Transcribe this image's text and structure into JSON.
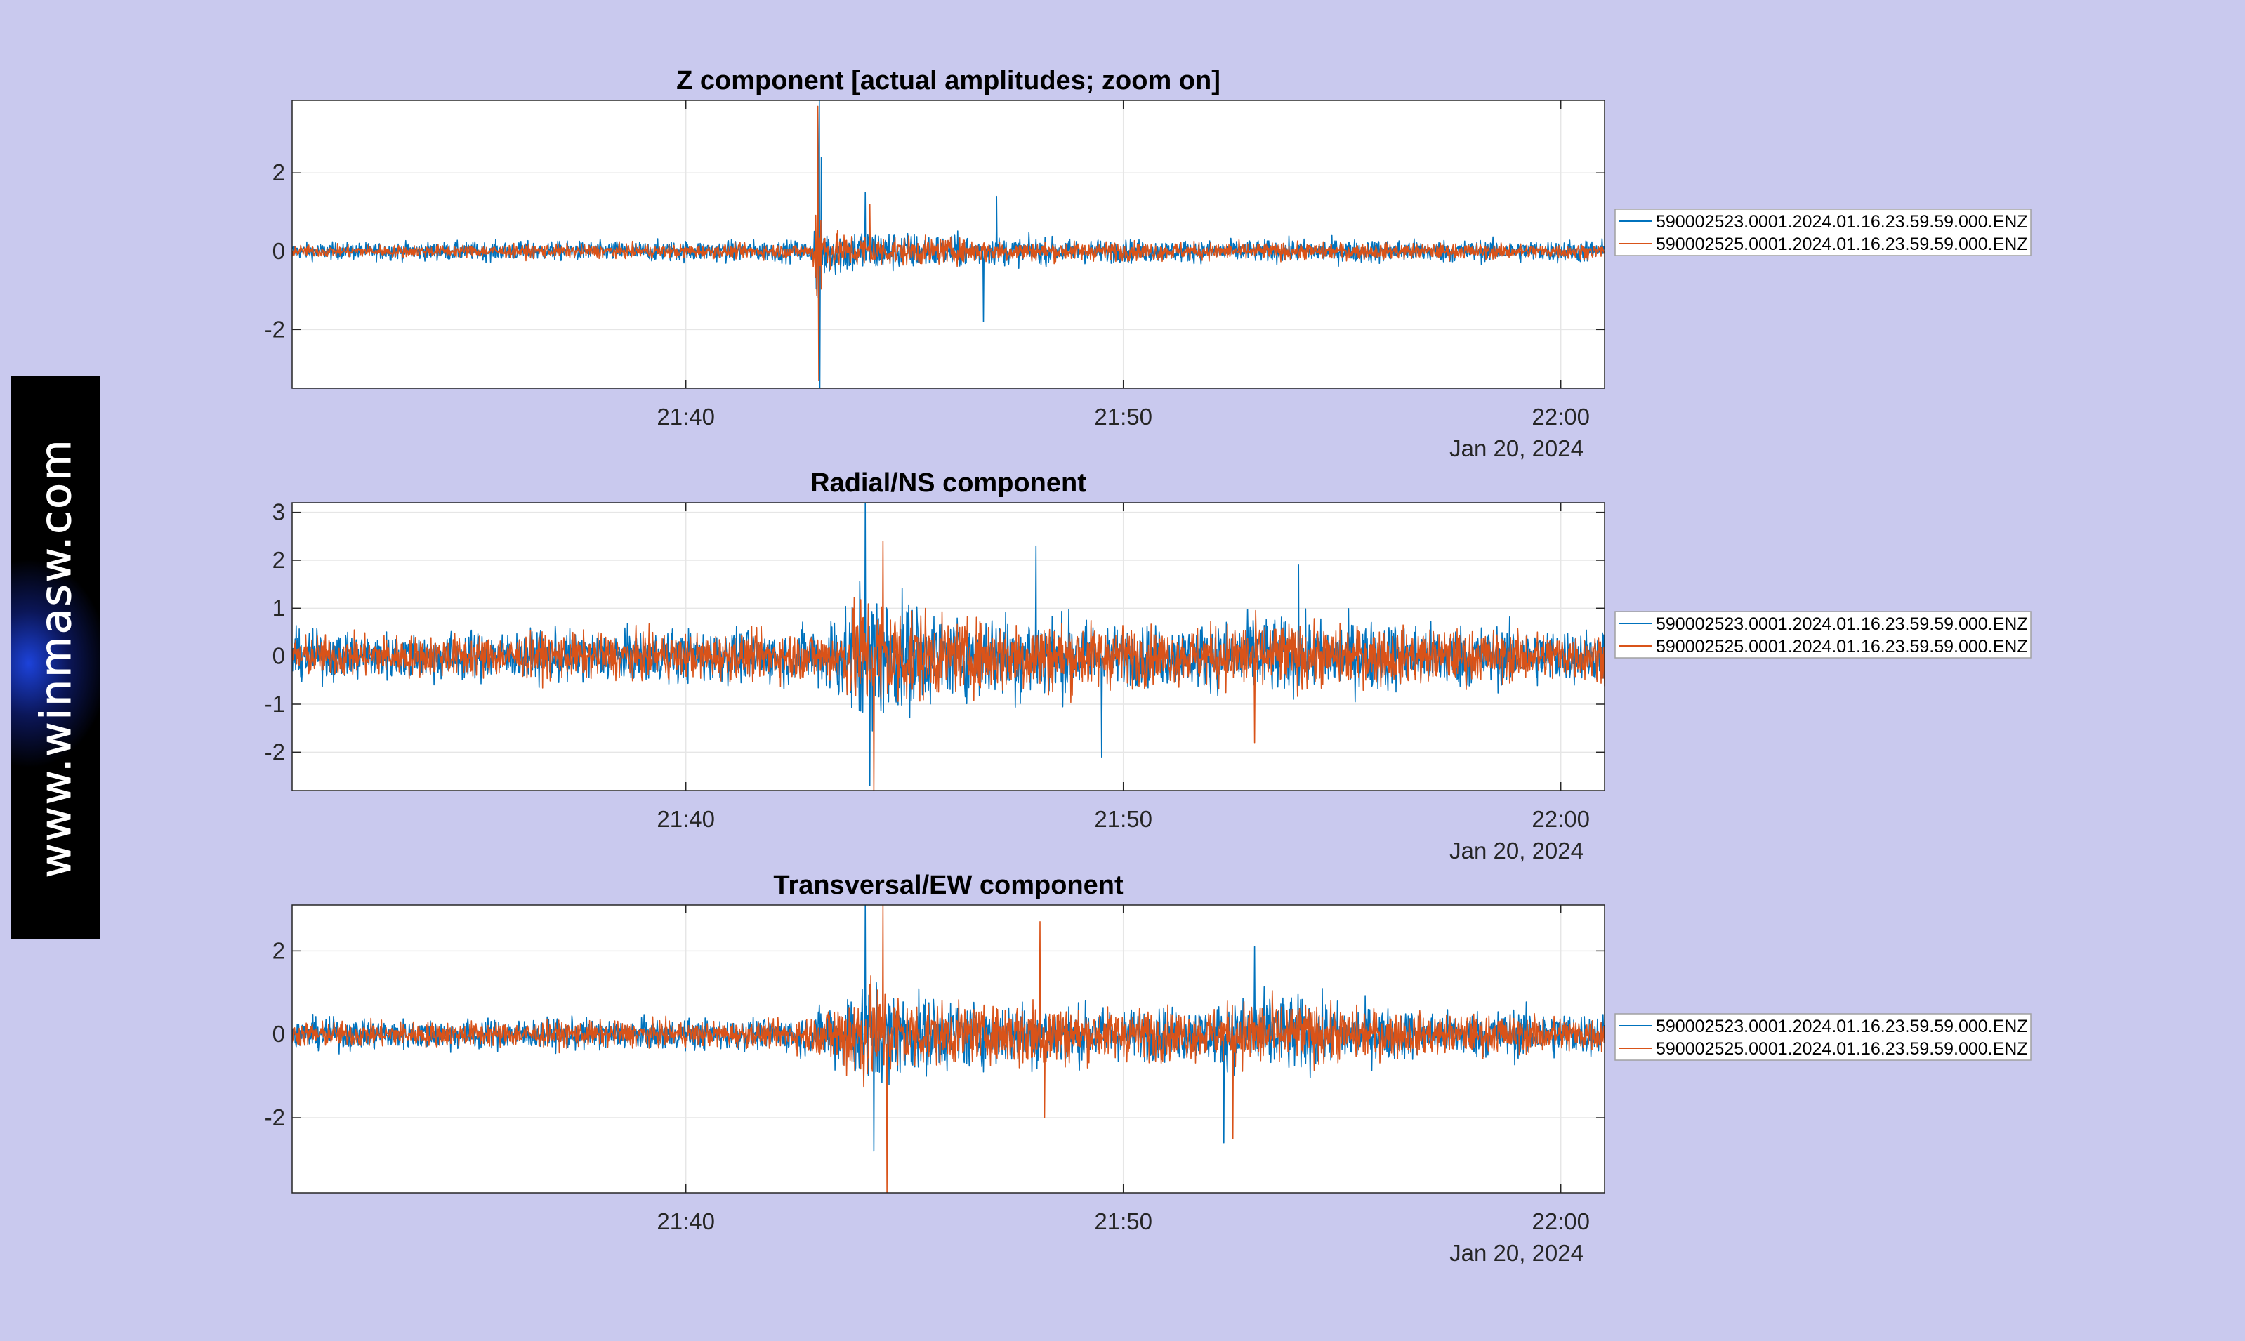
{
  "watermark": {
    "text": "www.winmasw.com"
  },
  "colors": {
    "background": "#c9c9ee",
    "series_1": "#0072bd",
    "series_2": "#d95319",
    "grid": "#e6e6e6",
    "axis": "#262626"
  },
  "chart_data": [
    {
      "type": "line",
      "title": "Z component [actual amplitudes; zoom on]",
      "x_axis": {
        "type": "time",
        "range": [
          "21:31:00",
          "22:01:00"
        ],
        "ticks": [
          "21:40",
          "21:50",
          "22:00"
        ],
        "secondary_label": "Jan 20, 2024"
      },
      "y_axis": {
        "range": [
          -3.5,
          3.85
        ],
        "ticks": [
          2,
          0,
          -2
        ]
      },
      "grid": true,
      "legend": {
        "placement": "right-outside",
        "entries": [
          "590002523.0001.2024.01.16.23.59.59.000.ENZ",
          "590002525.0001.2024.01.16.23.59.59.000.ENZ"
        ]
      },
      "series": [
        {
          "name": "590002523.0001.2024.01.16.23.59.59.000.ENZ",
          "color": "#0072bd",
          "envelope": [
            [
              0,
              0.35
            ],
            [
              5,
              0.4
            ],
            [
              10,
              0.45
            ],
            [
              11.9,
              0.45
            ],
            [
              12.05,
              3.85
            ],
            [
              12.2,
              1.0
            ],
            [
              13,
              1.0
            ],
            [
              14,
              0.8
            ],
            [
              15,
              0.7
            ],
            [
              16,
              0.6
            ],
            [
              18,
              0.5
            ],
            [
              21,
              0.45
            ],
            [
              25,
              0.5
            ],
            [
              28,
              0.45
            ],
            [
              30,
              0.5
            ]
          ],
          "spikes": [
            [
              12.05,
              3.85
            ],
            [
              12.06,
              -3.5
            ],
            [
              12.1,
              2.4
            ],
            [
              13.1,
              1.5
            ],
            [
              15.8,
              -1.8
            ],
            [
              16.1,
              1.4
            ]
          ]
        },
        {
          "name": "590002525.0001.2024.01.16.23.59.59.000.ENZ",
          "color": "#d95319",
          "envelope": [
            [
              0,
              0.25
            ],
            [
              10,
              0.3
            ],
            [
              11.9,
              0.3
            ],
            [
              12.0,
              3.6
            ],
            [
              12.2,
              0.8
            ],
            [
              14,
              0.6
            ],
            [
              17,
              0.4
            ],
            [
              30,
              0.3
            ]
          ],
          "spikes": [
            [
              12.02,
              3.7
            ],
            [
              12.04,
              -3.3
            ],
            [
              13.2,
              1.2
            ]
          ]
        }
      ]
    },
    {
      "type": "line",
      "title": "Radial/NS component",
      "x_axis": {
        "type": "time",
        "range": [
          "21:31:00",
          "22:01:00"
        ],
        "ticks": [
          "21:40",
          "21:50",
          "22:00"
        ],
        "secondary_label": "Jan 20, 2024"
      },
      "y_axis": {
        "range": [
          -2.8,
          3.2
        ],
        "ticks": [
          3,
          2,
          1,
          0,
          -1,
          -2
        ]
      },
      "grid": true,
      "legend": {
        "placement": "right-outside",
        "entries": [
          "590002523.0001.2024.01.16.23.59.59.000.ENZ",
          "590002525.0001.2024.01.16.23.59.59.000.ENZ"
        ]
      },
      "series": [
        {
          "name": "590002523.0001.2024.01.16.23.59.59.000.ENZ",
          "color": "#0072bd",
          "envelope": [
            [
              0,
              0.8
            ],
            [
              11,
              0.9
            ],
            [
              12,
              1.0
            ],
            [
              13,
              2.4
            ],
            [
              14,
              2.0
            ],
            [
              15,
              1.3
            ],
            [
              17,
              1.6
            ],
            [
              19,
              1.0
            ],
            [
              21,
              1.1
            ],
            [
              22,
              1.4
            ],
            [
              23,
              1.2
            ],
            [
              25,
              1.2
            ],
            [
              30,
              0.9
            ]
          ],
          "spikes": [
            [
              13.1,
              3.2
            ],
            [
              13.2,
              -2.7
            ],
            [
              17.0,
              2.3
            ],
            [
              18.5,
              -2.1
            ],
            [
              23.0,
              1.9
            ]
          ]
        },
        {
          "name": "590002525.0001.2024.01.16.23.59.59.000.ENZ",
          "color": "#d95319",
          "envelope": [
            [
              0,
              0.7
            ],
            [
              11,
              0.8
            ],
            [
              12.5,
              0.9
            ],
            [
              13,
              2.2
            ],
            [
              14,
              1.8
            ],
            [
              15,
              1.2
            ],
            [
              17,
              1.3
            ],
            [
              20,
              0.9
            ],
            [
              22,
              1.2
            ],
            [
              24,
              1.0
            ],
            [
              30,
              0.8
            ]
          ],
          "spikes": [
            [
              13.3,
              -2.8
            ],
            [
              13.5,
              2.4
            ],
            [
              22.0,
              -1.8
            ]
          ]
        }
      ]
    },
    {
      "type": "line",
      "title": "Transversal/EW component",
      "x_axis": {
        "type": "time",
        "range": [
          "21:31:00",
          "22:01:00"
        ],
        "ticks": [
          "21:40",
          "21:50",
          "22:00"
        ],
        "secondary_label": "Jan 20, 2024"
      },
      "y_axis": {
        "range": [
          -3.8,
          3.1
        ],
        "ticks": [
          2,
          0,
          -2
        ]
      },
      "grid": true,
      "legend": {
        "placement": "right-outside",
        "entries": [
          "590002523.0001.2024.01.16.23.59.59.000.ENZ",
          "590002525.0001.2024.01.16.23.59.59.000.ENZ"
        ]
      },
      "series": [
        {
          "name": "590002523.0001.2024.01.16.23.59.59.000.ENZ",
          "color": "#0072bd",
          "envelope": [
            [
              0,
              0.6
            ],
            [
              11,
              0.6
            ],
            [
              12,
              0.9
            ],
            [
              13,
              2.0
            ],
            [
              14.5,
              1.5
            ],
            [
              16,
              1.2
            ],
            [
              17,
              1.3
            ],
            [
              19,
              1.0
            ],
            [
              21,
              1.1
            ],
            [
              22,
              1.6
            ],
            [
              23,
              1.5
            ],
            [
              24,
              1.2
            ],
            [
              26,
              0.9
            ],
            [
              28,
              1.0
            ],
            [
              30,
              0.8
            ]
          ],
          "spikes": [
            [
              13.1,
              3.1
            ],
            [
              13.3,
              -2.8
            ],
            [
              22.0,
              2.1
            ],
            [
              21.3,
              -2.6
            ]
          ]
        },
        {
          "name": "590002525.0001.2024.01.16.23.59.59.000.ENZ",
          "color": "#d95319",
          "envelope": [
            [
              0,
              0.5
            ],
            [
              11,
              0.5
            ],
            [
              12,
              0.8
            ],
            [
              13,
              2.2
            ],
            [
              14.5,
              1.3
            ],
            [
              16,
              1.0
            ],
            [
              17,
              1.7
            ],
            [
              18,
              1.0
            ],
            [
              21,
              1.0
            ],
            [
              22,
              1.4
            ],
            [
              23,
              1.2
            ],
            [
              26,
              0.8
            ],
            [
              30,
              0.7
            ]
          ],
          "spikes": [
            [
              13.5,
              3.1
            ],
            [
              13.6,
              -3.8
            ],
            [
              17.1,
              2.7
            ],
            [
              17.2,
              -2.0
            ],
            [
              21.5,
              -2.5
            ]
          ]
        }
      ]
    }
  ]
}
